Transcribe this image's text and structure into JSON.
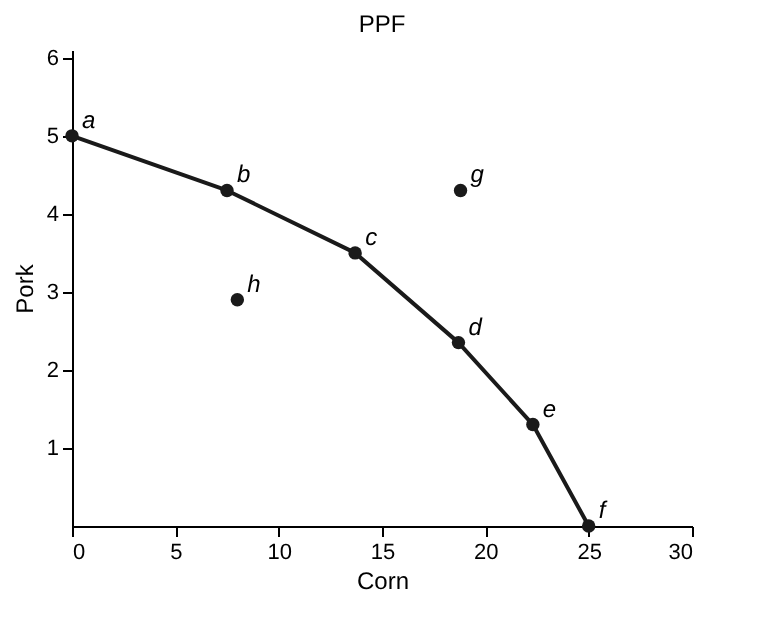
{
  "chart_data": {
    "type": "line",
    "title": "PPF",
    "xlabel": "Corn",
    "ylabel": "Pork",
    "xlim": [
      0,
      30
    ],
    "xticks": [
      0,
      5,
      10,
      15,
      20,
      25,
      30
    ],
    "ylim": [
      0,
      6.1
    ],
    "yticks": [
      1,
      2,
      3,
      4,
      5,
      6
    ],
    "series": [
      {
        "color": "#1a1a1a",
        "x": [
          0,
          7.5,
          13.7,
          18.7,
          22.3,
          25
        ],
        "values": [
          5.0,
          4.3,
          3.5,
          2.35,
          1.3,
          0
        ],
        "marker": "circle"
      },
      {
        "type": "scatter",
        "color": "#1a1a1a",
        "x": [
          18.8,
          8.0
        ],
        "values": [
          4.3,
          2.9
        ],
        "marker": "circle"
      }
    ],
    "annotations": [
      {
        "text": "a",
        "x": 0,
        "y": 5.0
      },
      {
        "text": "b",
        "x": 7.5,
        "y": 4.3
      },
      {
        "text": "c",
        "x": 13.7,
        "y": 3.5
      },
      {
        "text": "d",
        "x": 18.7,
        "y": 2.35
      },
      {
        "text": "e",
        "x": 22.3,
        "y": 1.3
      },
      {
        "text": "f",
        "x": 25,
        "y": 0
      },
      {
        "text": "g",
        "x": 18.8,
        "y": 4.3
      },
      {
        "text": "h",
        "x": 8.0,
        "y": 2.9
      }
    ],
    "grid": false
  }
}
